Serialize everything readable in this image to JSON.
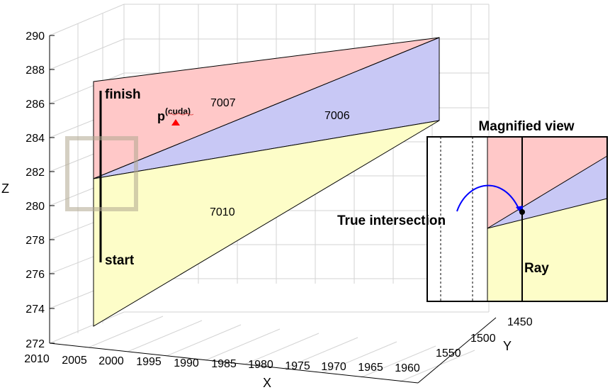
{
  "axes": {
    "x_label": "X",
    "y_label": "Y",
    "z_label": "Z",
    "z_ticks": [
      "290",
      "288",
      "286",
      "284",
      "282",
      "280",
      "278",
      "276",
      "274",
      "272"
    ],
    "x_ticks": [
      "2010",
      "2005",
      "2000",
      "1995",
      "1990",
      "1985",
      "1980",
      "1975",
      "1970",
      "1965",
      "1960"
    ],
    "y_ticks": [
      "1450",
      "1500",
      "1550"
    ]
  },
  "planes": {
    "red_label": "7007",
    "blue_label": "7006",
    "yellow_label": "7010",
    "red_color": "#ffc8c8",
    "blue_color": "#c8c8f5",
    "yellow_color": "#fdfdc8"
  },
  "ray": {
    "finish_label": "finish",
    "start_label": "start",
    "point_base": "p",
    "point_superscript": "(cuda)",
    "marker_color": "#ff0000"
  },
  "inset": {
    "title": "Magnified view",
    "intersection_label": "True intersection",
    "ray_label": "Ray",
    "arrow_color": "#0000ff"
  }
}
